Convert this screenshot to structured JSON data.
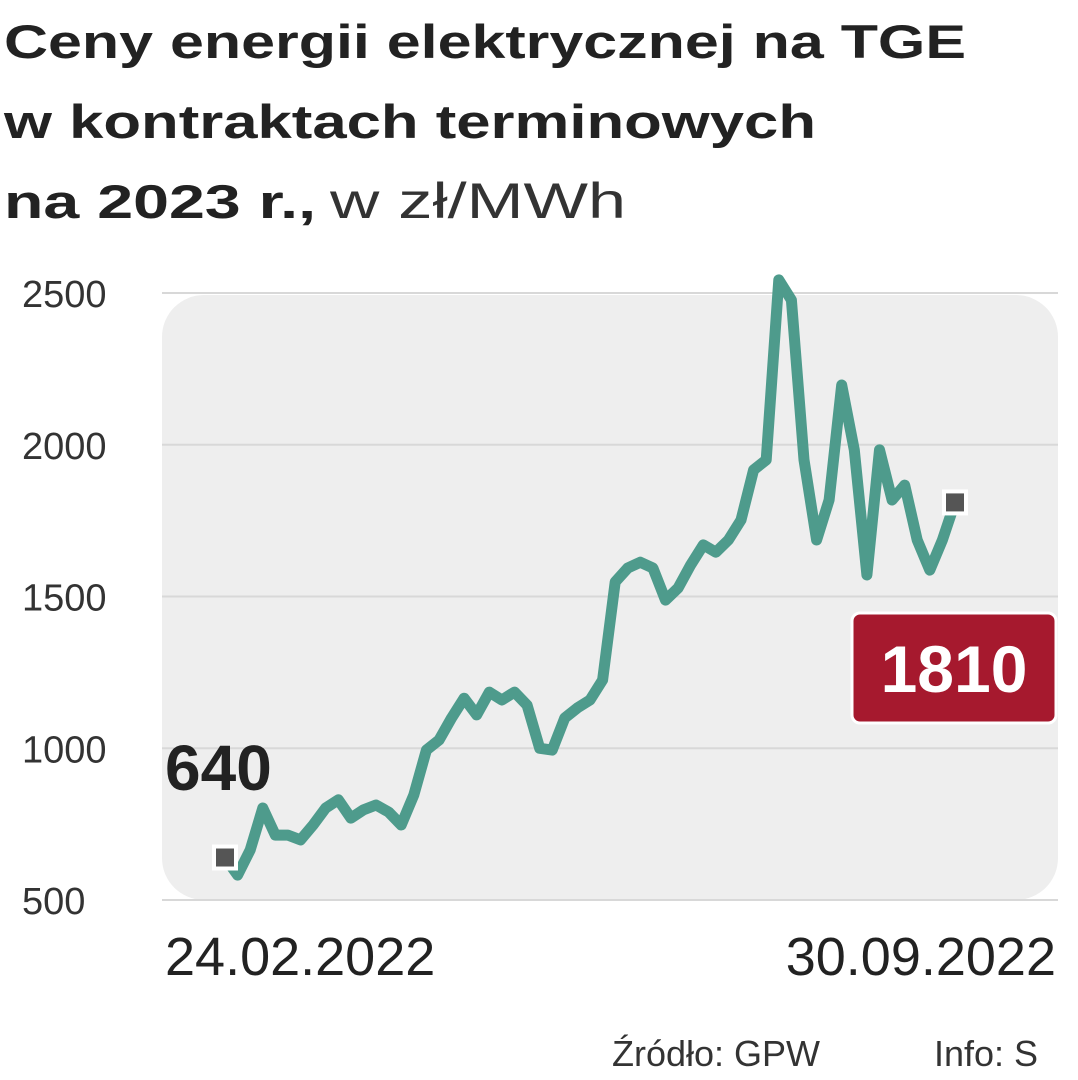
{
  "chart_data": {
    "type": "line",
    "title": [
      "Ceny energii elektrycznej na TGE",
      "w kontraktach terminowych",
      "na 2023 r.,"
    ],
    "subtitle": "w zł/MWh",
    "source": "Źródło: GPW",
    "credit": "Info: S",
    "categories": [
      "24.02.2022",
      null,
      null,
      null,
      null,
      null,
      null,
      null,
      null,
      null,
      null,
      null,
      null,
      null,
      null,
      null,
      null,
      null,
      null,
      null,
      null,
      null,
      null,
      null,
      null,
      null,
      null,
      null,
      null,
      null,
      null,
      null,
      null,
      null,
      null,
      null,
      null,
      null,
      null,
      null,
      null,
      null,
      null,
      null,
      null,
      null,
      null,
      null,
      null,
      null,
      null,
      null,
      null,
      null,
      null,
      null,
      null,
      null,
      "30.09.2022"
    ],
    "series": [
      {
        "color": "#4e9b8c",
        "values": [
          640,
          582,
          665,
          803,
          714,
          714,
          698,
          747,
          803,
          830,
          770,
          797,
          813,
          790,
          747,
          846,
          994,
          1027,
          1100,
          1165,
          1110,
          1185,
          1159,
          1185,
          1142,
          1000,
          994,
          1100,
          1133,
          1159,
          1225,
          1548,
          1594,
          1613,
          1594,
          1488,
          1528,
          1604,
          1670,
          1646,
          1686,
          1752,
          1917,
          1950,
          2543,
          2477,
          1950,
          1686,
          1818,
          2197,
          1983,
          1571,
          1983,
          1818,
          1867,
          1686,
          1587,
          1686,
          1810
        ]
      }
    ],
    "ylim": [
      500,
      2500
    ],
    "yticks": [
      500,
      1000,
      1500,
      2000,
      2500
    ],
    "grid": true
  }
}
